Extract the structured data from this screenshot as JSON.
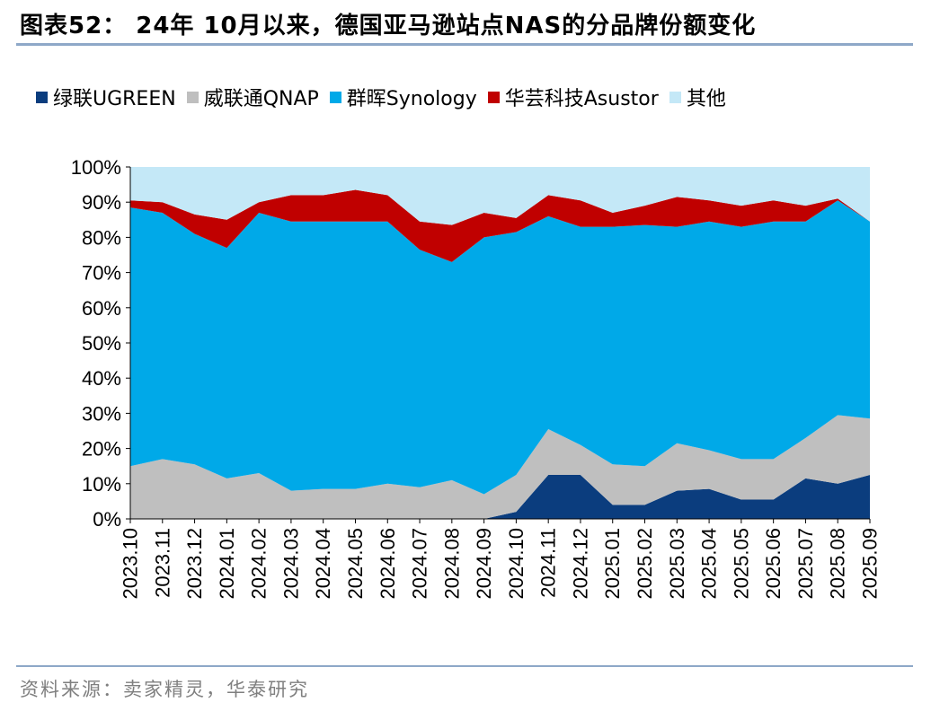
{
  "header": {
    "title": "图表52： 24年 10月以来，德国亚马逊站点NAS的分品牌份额变化"
  },
  "footer": {
    "source": "资料来源：卖家精灵，华泰研究"
  },
  "chart_data": {
    "type": "area",
    "stacked": true,
    "title": "24年 10月以来，德国亚马逊站点NAS的分品牌份额变化",
    "xlabel": "",
    "ylabel": "",
    "ylim": [
      0,
      100
    ],
    "y_ticks": [
      "0%",
      "10%",
      "20%",
      "30%",
      "40%",
      "50%",
      "60%",
      "70%",
      "80%",
      "90%",
      "100%"
    ],
    "legend_position": "top",
    "categories": [
      "2023.10",
      "2023.11",
      "2023.12",
      "2024.01",
      "2024.02",
      "2024.03",
      "2024.04",
      "2024.05",
      "2024.06",
      "2024.07",
      "2024.08",
      "2024.09",
      "2024.10",
      "2024.11",
      "2024.12",
      "2025.01",
      "2025.02",
      "2025.03",
      "2025.04",
      "2025.05",
      "2025.06",
      "2025.07",
      "2025.08",
      "2025.09"
    ],
    "series": [
      {
        "name": "绿联UGREEN",
        "color": "#0b3d7e",
        "values": [
          0,
          0,
          0,
          0,
          0,
          0,
          0,
          0,
          0,
          0,
          0,
          0,
          2,
          12.5,
          12.5,
          4,
          4,
          8,
          8.5,
          5.5,
          5.5,
          11.5,
          10,
          12.5
        ]
      },
      {
        "name": "威联通QNAP",
        "color": "#bfbfbf",
        "values": [
          15,
          17,
          15.5,
          11.5,
          13,
          8,
          8.5,
          8.5,
          10,
          9,
          11,
          7,
          10.5,
          13,
          8.5,
          11.5,
          11,
          13.5,
          11,
          11.5,
          11.5,
          11.5,
          19.5,
          16
        ]
      },
      {
        "name": "群晖Synology",
        "color": "#00a9e8",
        "values": [
          73.5,
          70,
          65.5,
          65.5,
          74,
          76.5,
          76,
          76,
          74.5,
          67.5,
          62,
          73,
          69,
          60.5,
          62,
          67.5,
          68.5,
          61.5,
          65,
          66,
          67.5,
          61.5,
          61,
          56
        ]
      },
      {
        "name": "华芸科技Asustor",
        "color": "#c00000",
        "values": [
          2,
          3,
          5.5,
          8,
          3,
          7.5,
          7.5,
          9,
          7.5,
          8,
          10.5,
          7,
          4,
          6,
          7.5,
          4,
          5.5,
          8.5,
          6,
          6,
          6,
          4.5,
          0.5,
          0
        ]
      },
      {
        "name": "其他",
        "color": "#c4e8f7",
        "values": [
          9.5,
          10,
          13.5,
          15,
          10,
          8,
          8,
          6.5,
          8,
          15.5,
          16.5,
          13,
          14.5,
          8,
          9.5,
          13,
          11,
          8.5,
          9.5,
          11,
          9.5,
          11,
          9,
          15.5
        ]
      }
    ]
  }
}
